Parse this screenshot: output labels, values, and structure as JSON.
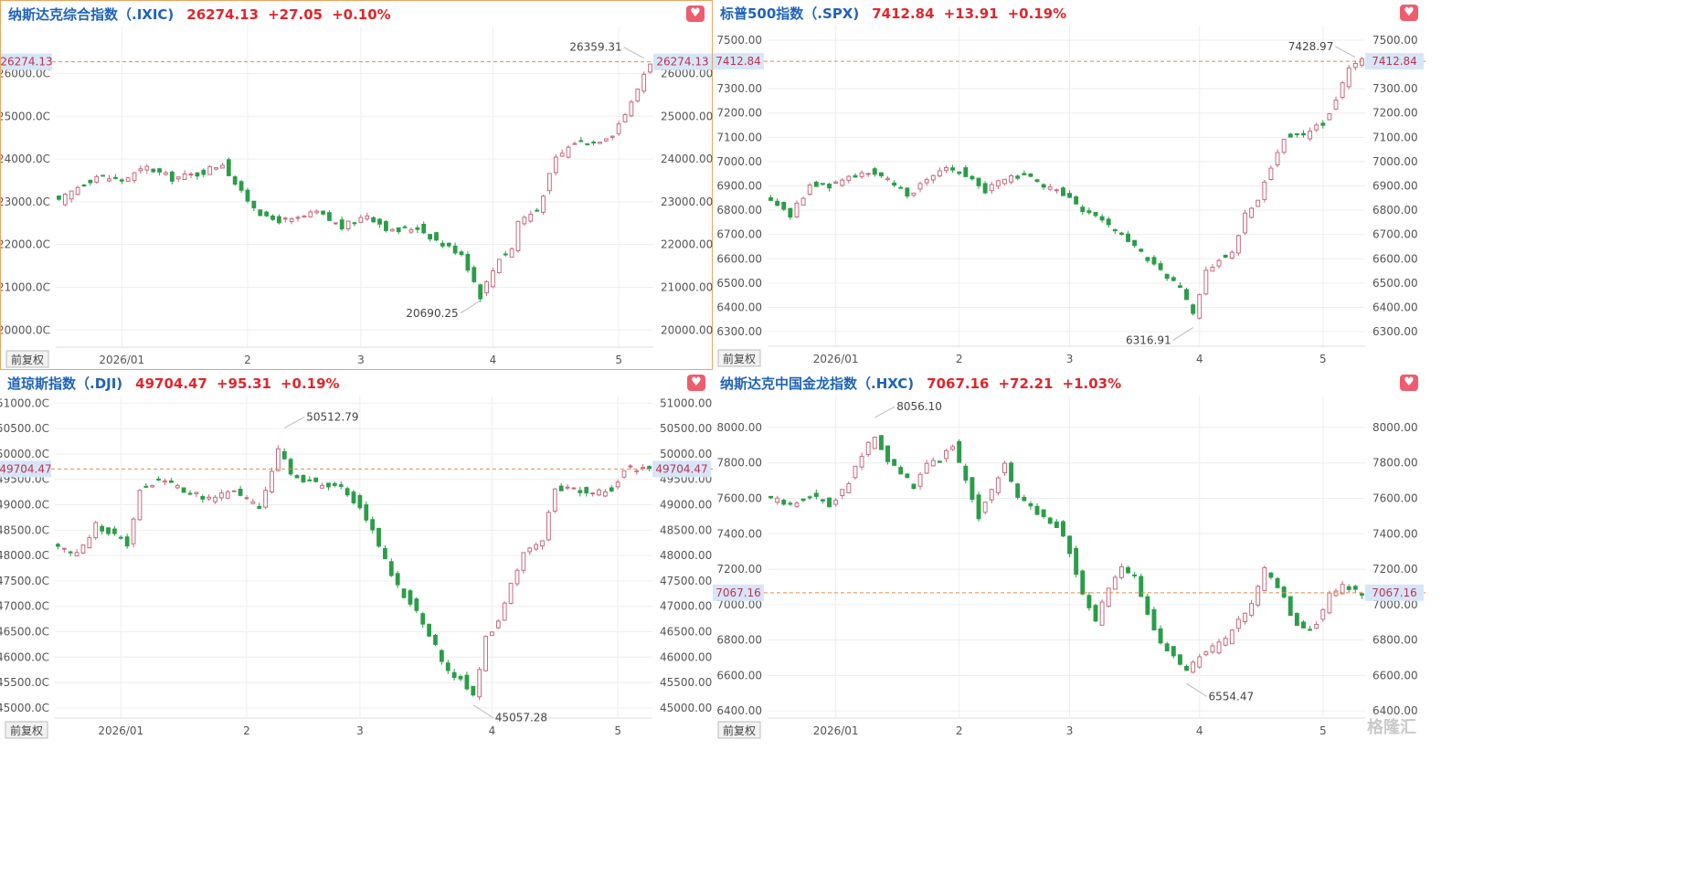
{
  "colors": {
    "up": "#c8697d",
    "down": "#2a9d48",
    "ref": "#e88b4a",
    "grid": "#eeeeee",
    "axis_text": "#555555",
    "brand": "#1f63b8",
    "change": "#e0262b",
    "tag_bg": "#d6e6f8",
    "tag_text": "#c0324d"
  },
  "common": {
    "adjust_label": "前复权",
    "favorite_icon": "heart-icon",
    "watermark": "格隆汇"
  },
  "chart_data": [
    {
      "type": "candlestick",
      "title": "纳斯达克综合指数（.IXIC)",
      "last": "26274.13",
      "change": "+27.05",
      "change_pct": "+0.10%",
      "ylim": [
        19600,
        27100
      ],
      "yticks": [
        20000,
        21000,
        22000,
        23000,
        24000,
        25000,
        26000
      ],
      "y_tick_labels": [
        "20000.0C",
        "21000.0C",
        "22000.0C",
        "23000.0C",
        "24000.0C",
        "25000.0C",
        "26000.0C"
      ],
      "y_tick_labels_right": [
        "20000.00",
        "21000.00",
        "22000.00",
        "23000.00",
        "24000.00",
        "25000.00",
        "26000.00"
      ],
      "x_ticks": [
        {
          "label": "2026/01",
          "i": 10
        },
        {
          "label": "2",
          "i": 30
        },
        {
          "label": "3",
          "i": 48
        },
        {
          "label": "4",
          "i": 69
        },
        {
          "label": "5",
          "i": 89
        }
      ],
      "n": 95,
      "ref_value": 26274.13,
      "ref_label": "26274.13",
      "annotations": [
        {
          "label": "26359.31",
          "i": 93,
          "value": 26359.31,
          "pos": "above"
        },
        {
          "label": "20690.25",
          "i": 67,
          "value": 20690.25,
          "pos": "below"
        }
      ],
      "anchors": [
        [
          0,
          23000
        ],
        [
          3,
          23350
        ],
        [
          6,
          23600
        ],
        [
          10,
          23500
        ],
        [
          14,
          23800
        ],
        [
          18,
          23550
        ],
        [
          22,
          23650
        ],
        [
          26,
          23900
        ],
        [
          29,
          23200
        ],
        [
          33,
          22600
        ],
        [
          37,
          22550
        ],
        [
          41,
          22750
        ],
        [
          45,
          22400
        ],
        [
          49,
          22700
        ],
        [
          53,
          22300
        ],
        [
          57,
          22400
        ],
        [
          61,
          22000
        ],
        [
          64,
          21800
        ],
        [
          67,
          20800
        ],
        [
          70,
          21700
        ],
        [
          72,
          21900
        ],
        [
          73,
          22550
        ],
        [
          76,
          22800
        ],
        [
          79,
          24000
        ],
        [
          82,
          24400
        ],
        [
          85,
          24400
        ],
        [
          88,
          24600
        ],
        [
          91,
          25300
        ],
        [
          93,
          26000
        ],
        [
          94,
          26274
        ]
      ],
      "selected": true
    },
    {
      "type": "candlestick",
      "title": "标普500指数（.SPX)",
      "last": "7412.84",
      "change": "+13.91",
      "change_pct": "+0.19%",
      "ylim": [
        6240,
        7560
      ],
      "yticks": [
        6300,
        6400,
        6500,
        6600,
        6700,
        6800,
        6900,
        7000,
        7100,
        7200,
        7300,
        7500
      ],
      "y_tick_labels": [
        "6300.00",
        "6400.00",
        "6500.00",
        "6600.00",
        "6700.00",
        "6800.00",
        "6900.00",
        "7000.00",
        "7100.00",
        "7200.00",
        "7300.00",
        "7500.00"
      ],
      "y_tick_labels_right": [
        "6300.00",
        "6400.00",
        "6500.00",
        "6600.00",
        "6700.00",
        "6800.00",
        "6900.00",
        "7000.00",
        "7100.00",
        "7200.00",
        "7300.00",
        "7500.00"
      ],
      "x_ticks": [
        {
          "label": "2026/01",
          "i": 10
        },
        {
          "label": "2",
          "i": 29
        },
        {
          "label": "3",
          "i": 46
        },
        {
          "label": "4",
          "i": 66
        },
        {
          "label": "5",
          "i": 85
        }
      ],
      "n": 92,
      "ref_value": 7412.84,
      "ref_label": "7412.84",
      "annotations": [
        {
          "label": "7428.97",
          "i": 90,
          "value": 7428.97,
          "pos": "above"
        },
        {
          "label": "6316.91",
          "i": 65,
          "value": 6316.91,
          "pos": "below"
        }
      ],
      "anchors": [
        [
          0,
          6850
        ],
        [
          3,
          6780
        ],
        [
          6,
          6900
        ],
        [
          9,
          6900
        ],
        [
          12,
          6940
        ],
        [
          15,
          6960
        ],
        [
          18,
          6920
        ],
        [
          21,
          6860
        ],
        [
          24,
          6930
        ],
        [
          27,
          6980
        ],
        [
          30,
          6950
        ],
        [
          33,
          6880
        ],
        [
          36,
          6930
        ],
        [
          39,
          6950
        ],
        [
          42,
          6890
        ],
        [
          45,
          6870
        ],
        [
          48,
          6800
        ],
        [
          51,
          6750
        ],
        [
          54,
          6700
        ],
        [
          57,
          6620
        ],
        [
          60,
          6550
        ],
        [
          63,
          6480
        ],
        [
          65,
          6370
        ],
        [
          67,
          6550
        ],
        [
          69,
          6600
        ],
        [
          71,
          6620
        ],
        [
          73,
          6780
        ],
        [
          75,
          6850
        ],
        [
          77,
          6980
        ],
        [
          79,
          7100
        ],
        [
          82,
          7110
        ],
        [
          85,
          7160
        ],
        [
          87,
          7260
        ],
        [
          89,
          7380
        ],
        [
          91,
          7413
        ]
      ]
    },
    {
      "type": "candlestick",
      "title": "道琼斯指数（.DJI)",
      "last": "49704.47",
      "change": "+95.31",
      "change_pct": "+0.19%",
      "ylim": [
        44800,
        51150
      ],
      "yticks": [
        45000,
        45500,
        46000,
        46500,
        47000,
        47500,
        48000,
        48500,
        49000,
        49500,
        50000,
        50500,
        51000
      ],
      "y_tick_labels": [
        "45000.0C",
        "45500.0C",
        "46000.0C",
        "46500.0C",
        "47000.0C",
        "47500.0C",
        "48000.0C",
        "48500.0C",
        "49000.0C",
        "49500.0C",
        "50000.0C",
        "50500.0C",
        "51000.0C"
      ],
      "y_tick_labels_right": [
        "45000.00",
        "45500.00",
        "46000.00",
        "46500.00",
        "47000.00",
        "47500.00",
        "48000.00",
        "48500.00",
        "49000.00",
        "49500.00",
        "50000.00",
        "50500.00",
        "51000.00"
      ],
      "x_ticks": [
        {
          "label": "2026/01",
          "i": 10
        },
        {
          "label": "2",
          "i": 30
        },
        {
          "label": "3",
          "i": 48
        },
        {
          "label": "4",
          "i": 69
        },
        {
          "label": "5",
          "i": 89
        }
      ],
      "n": 95,
      "ref_value": 49704.47,
      "ref_label": "49704.47",
      "annotations": [
        {
          "label": "50512.79",
          "i": 36,
          "value": 50512.79,
          "pos": "above"
        },
        {
          "label": "45057.28",
          "i": 66,
          "value": 45057.28,
          "pos": "below"
        }
      ],
      "anchors": [
        [
          0,
          48200
        ],
        [
          3,
          48000
        ],
        [
          6,
          48600
        ],
        [
          9,
          48400
        ],
        [
          11,
          48200
        ],
        [
          13,
          49300
        ],
        [
          16,
          49500
        ],
        [
          20,
          49300
        ],
        [
          24,
          49100
        ],
        [
          28,
          49300
        ],
        [
          32,
          48900
        ],
        [
          35,
          50100
        ],
        [
          37,
          49600
        ],
        [
          41,
          49400
        ],
        [
          45,
          49300
        ],
        [
          48,
          49000
        ],
        [
          51,
          48200
        ],
        [
          54,
          47400
        ],
        [
          57,
          46900
        ],
        [
          60,
          46200
        ],
        [
          62,
          45700
        ],
        [
          64,
          45600
        ],
        [
          66,
          45200
        ],
        [
          68,
          46400
        ],
        [
          70,
          46700
        ],
        [
          72,
          47500
        ],
        [
          74,
          48000
        ],
        [
          77,
          48300
        ],
        [
          79,
          49300
        ],
        [
          82,
          49300
        ],
        [
          85,
          49200
        ],
        [
          88,
          49300
        ],
        [
          90,
          49700
        ],
        [
          94,
          49704
        ]
      ]
    },
    {
      "type": "candlestick",
      "title": "纳斯达克中国金龙指数（.HXC)",
      "last": "7067.16",
      "change": "+72.21",
      "change_pct": "+1.03%",
      "ylim": [
        6360,
        8180
      ],
      "yticks": [
        6400,
        6600,
        6800,
        7000,
        7200,
        7400,
        7600,
        7800,
        8000
      ],
      "y_tick_labels": [
        "6400.00",
        "6600.00",
        "6800.00",
        "7000.00",
        "7200.00",
        "7400.00",
        "7600.00",
        "7800.00",
        "8000.00"
      ],
      "y_tick_labels_right": [
        "6400.00",
        "6600.00",
        "6800.00",
        "7000.00",
        "7200.00",
        "7400.00",
        "7600.00",
        "7800.00",
        "8000.00"
      ],
      "x_ticks": [
        {
          "label": "2026/01",
          "i": 10
        },
        {
          "label": "2",
          "i": 29
        },
        {
          "label": "3",
          "i": 46
        },
        {
          "label": "4",
          "i": 66
        },
        {
          "label": "5",
          "i": 85
        }
      ],
      "n": 92,
      "ref_value": 7067.16,
      "ref_label": "7067.16",
      "annotations": [
        {
          "label": "8056.10",
          "i": 16,
          "value": 8056.1,
          "pos": "above"
        },
        {
          "label": "6554.47",
          "i": 64,
          "value": 6554.47,
          "pos": "below"
        }
      ],
      "anchors": [
        [
          0,
          7600
        ],
        [
          3,
          7560
        ],
        [
          6,
          7620
        ],
        [
          9,
          7560
        ],
        [
          12,
          7700
        ],
        [
          14,
          7850
        ],
        [
          16,
          7950
        ],
        [
          18,
          7800
        ],
        [
          20,
          7750
        ],
        [
          22,
          7650
        ],
        [
          24,
          7800
        ],
        [
          26,
          7820
        ],
        [
          28,
          7900
        ],
        [
          30,
          7700
        ],
        [
          32,
          7500
        ],
        [
          34,
          7650
        ],
        [
          36,
          7800
        ],
        [
          38,
          7600
        ],
        [
          40,
          7550
        ],
        [
          42,
          7500
        ],
        [
          44,
          7450
        ],
        [
          46,
          7300
        ],
        [
          48,
          7050
        ],
        [
          50,
          6900
        ],
        [
          52,
          7100
        ],
        [
          54,
          7200
        ],
        [
          56,
          7150
        ],
        [
          58,
          6950
        ],
        [
          60,
          6800
        ],
        [
          62,
          6700
        ],
        [
          64,
          6620
        ],
        [
          66,
          6700
        ],
        [
          68,
          6750
        ],
        [
          70,
          6800
        ],
        [
          72,
          6900
        ],
        [
          74,
          7000
        ],
        [
          76,
          7200
        ],
        [
          78,
          7100
        ],
        [
          80,
          6950
        ],
        [
          82,
          6850
        ],
        [
          84,
          6900
        ],
        [
          86,
          7050
        ],
        [
          88,
          7100
        ],
        [
          91,
          7067
        ]
      ]
    }
  ]
}
